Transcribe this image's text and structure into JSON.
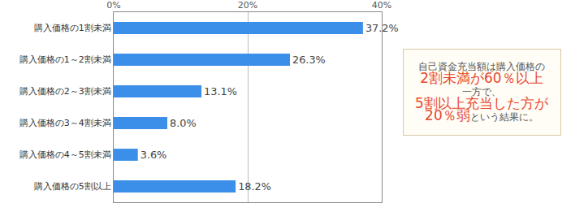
{
  "chart_data": {
    "type": "bar",
    "orientation": "horizontal",
    "categories": [
      "購入価格の1割未満",
      "購入価格の1～2割未満",
      "購入価格の2～3割未満",
      "購入価格の3～4割未満",
      "購入価格の4～5割未満",
      "購入価格の5割以上"
    ],
    "values": [
      37.2,
      26.3,
      13.1,
      8.0,
      3.6,
      18.2
    ],
    "value_labels": [
      "37.2%",
      "26.3%",
      "13.1%",
      "8.0%",
      "3.6%",
      "18.2%"
    ],
    "data_labels": true,
    "color": "#3b8fe8",
    "xlim": [
      0,
      40
    ],
    "xticks": [
      {
        "value": 0,
        "label": "0%"
      },
      {
        "value": 20,
        "label": "20%"
      },
      {
        "value": 40,
        "label": "40%"
      }
    ],
    "grid": true,
    "annotation": [
      [
        {
          "text": "自己資金充当額は購入価格の",
          "color": "#555555"
        }
      ],
      [
        {
          "text": "2割未満が60％以上",
          "color": "#e8472e"
        }
      ],
      [
        {
          "text": "一方で、",
          "color": "#555555"
        }
      ],
      [
        {
          "text": "5割以上充当した方が",
          "color": "#e8472e"
        }
      ],
      [
        {
          "text": "20％弱",
          "color": "#e8472e"
        },
        {
          "text": "という結果に。",
          "color": "#555555"
        }
      ]
    ]
  }
}
